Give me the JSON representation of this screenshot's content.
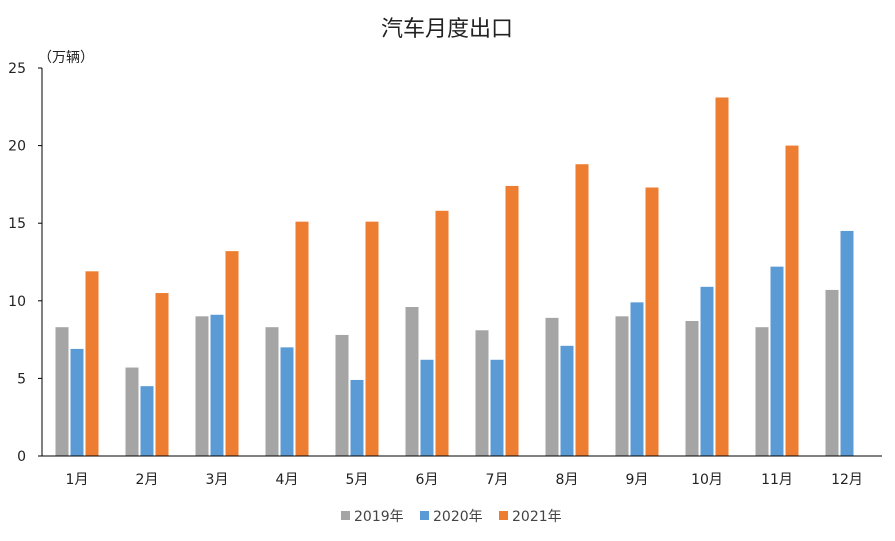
{
  "chart_data": {
    "type": "bar",
    "title": "汽车月度出口",
    "unit_label": "（万辆）",
    "xlabel": "",
    "ylabel": "",
    "ylim": [
      0,
      25
    ],
    "yticks": [
      "0",
      "5",
      "10",
      "15",
      "20",
      "25"
    ],
    "grid": false,
    "legend_position": "bottom",
    "categories": [
      "1月",
      "2月",
      "3月",
      "4月",
      "5月",
      "6月",
      "7月",
      "8月",
      "9月",
      "10月",
      "11月",
      "12月"
    ],
    "series": [
      {
        "name": "2019年",
        "color": "#a5a5a5",
        "values": [
          8.3,
          5.7,
          9.0,
          8.3,
          7.8,
          9.6,
          8.1,
          8.9,
          9.0,
          8.7,
          8.3,
          10.7
        ]
      },
      {
        "name": "2020年",
        "color": "#5b9bd5",
        "values": [
          6.9,
          4.5,
          9.1,
          7.0,
          4.9,
          6.2,
          6.2,
          7.1,
          9.9,
          10.9,
          12.2,
          14.5
        ]
      },
      {
        "name": "2021年",
        "color": "#ed7d31",
        "values": [
          11.9,
          10.5,
          13.2,
          15.1,
          15.1,
          15.8,
          17.4,
          18.8,
          17.3,
          23.1,
          20.0,
          null
        ]
      }
    ]
  }
}
